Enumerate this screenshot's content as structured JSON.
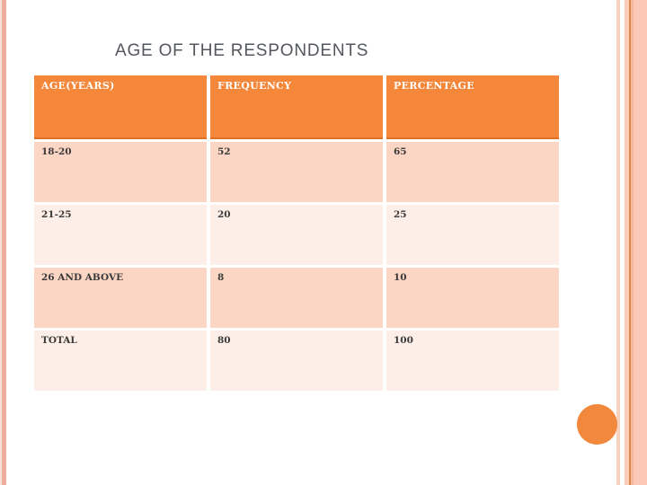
{
  "slide": {
    "title": "AGE OF THE RESPONDENTS",
    "theme_colors": {
      "header_orange": "#f5873b",
      "header_underline_orange": "#dd7227",
      "row_pink_dark": "#fcd6c5",
      "row_pink_light": "#fdefe7",
      "title_gray": "#53575d",
      "edge_stripe_salmon": "#efae9b",
      "edge_stripe_pink": "#fbc9b5",
      "edge_stripe_line": "#e0894f",
      "ornament_circle_orange": "#f1883c"
    }
  },
  "table": {
    "columns": [
      "AGE(YEARS)",
      "FREQUENCY",
      "PERCENTAGE"
    ],
    "rows": [
      [
        "18-20",
        "52",
        "65"
      ],
      [
        "21-25",
        "20",
        "25"
      ],
      [
        "26 AND ABOVE",
        "8",
        "10"
      ],
      [
        "TOTAL",
        "80",
        "100"
      ]
    ]
  },
  "chart_data": {
    "type": "table",
    "title": "AGE OF THE RESPONDENTS",
    "columns": [
      "AGE(YEARS)",
      "FREQUENCY",
      "PERCENTAGE"
    ],
    "rows": [
      {
        "age_years": "18-20",
        "frequency": 52,
        "percentage": 65
      },
      {
        "age_years": "21-25",
        "frequency": 20,
        "percentage": 25
      },
      {
        "age_years": "26 AND ABOVE",
        "frequency": 8,
        "percentage": 10
      },
      {
        "age_years": "TOTAL",
        "frequency": 80,
        "percentage": 100
      }
    ]
  }
}
